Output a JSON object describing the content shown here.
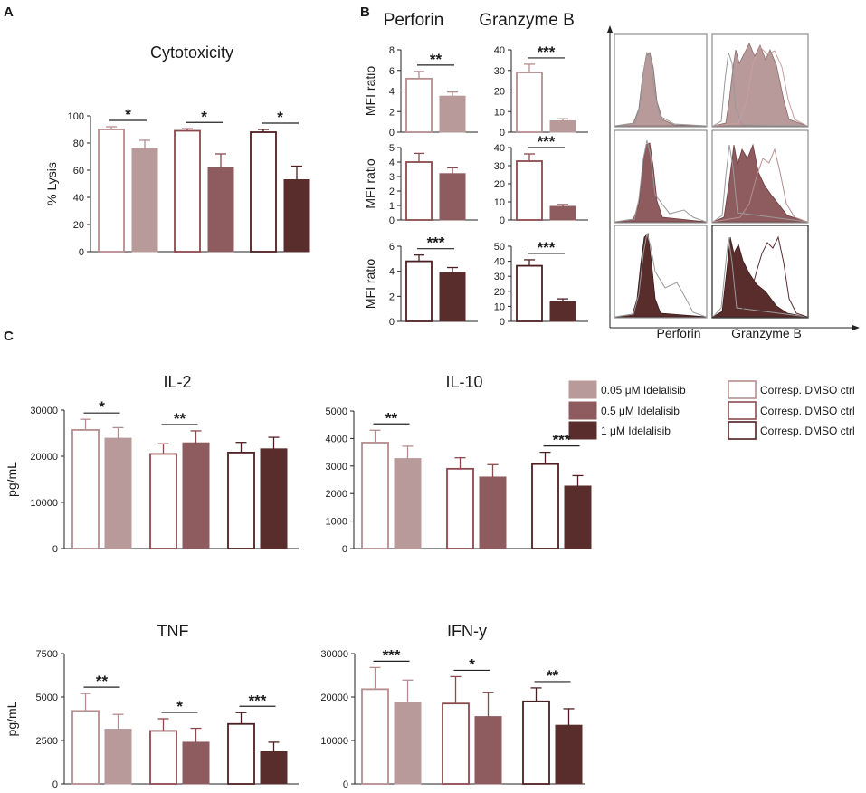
{
  "panels": {
    "A": "A",
    "B": "B",
    "C": "C"
  },
  "colors": {
    "light": "#b89a9a",
    "medium": "#8e5c5e",
    "dark": "#5a2d2d",
    "ctrl_light": "#b58d8f",
    "ctrl_medium": "#8a4a4e",
    "ctrl_dark": "#4e1f22",
    "err": "#555555"
  },
  "legend": {
    "idel": [
      "0.05 μM Idelalisib",
      "0.5 μM Idelalisib",
      "1 μM Idelalisib"
    ],
    "ctrl": [
      "Corresp. DMSO ctrl",
      "Corresp. DMSO ctrl",
      "Corresp. DMSO ctrl"
    ]
  },
  "b_titles": {
    "perforin": "Perforin",
    "granzyme": "Granzyme B"
  },
  "histo": {
    "xlabel_left": "Perforin",
    "xlabel_right": "Granzyme B"
  },
  "chart_data": [
    {
      "id": "A",
      "type": "bar",
      "title": "Cytotoxicity",
      "xlabel": "",
      "ylabel": "% Lysis",
      "ylim": [
        0,
        100
      ],
      "yticks": [
        0,
        20,
        40,
        60,
        80,
        100
      ],
      "ytick_labels": [
        "0",
        "20",
        "40",
        "60",
        "80",
        "100"
      ],
      "groups": [
        {
          "ctrl": 90,
          "ctrl_err": 2,
          "treat": 76,
          "treat_err": 6,
          "shade": "light",
          "sig": "*"
        },
        {
          "ctrl": 89,
          "ctrl_err": 1.5,
          "treat": 62,
          "treat_err": 10,
          "shade": "medium",
          "sig": "*"
        },
        {
          "ctrl": 88,
          "ctrl_err": 2,
          "treat": 53,
          "treat_err": 10,
          "shade": "dark",
          "sig": "*"
        }
      ]
    },
    {
      "id": "B-perf-1",
      "type": "bar",
      "title": "",
      "ylabel": "MFI ratio",
      "ylim": [
        0,
        8
      ],
      "yticks": [
        0,
        2,
        4,
        6,
        8
      ],
      "ytick_labels": [
        "0",
        "2",
        "4",
        "6",
        "8"
      ],
      "groups": [
        {
          "ctrl": 5.2,
          "ctrl_err": 0.7,
          "treat": 3.5,
          "treat_err": 0.4,
          "shade": "light",
          "sig": "**"
        }
      ]
    },
    {
      "id": "B-gzm-1",
      "type": "bar",
      "title": "",
      "ylabel": "",
      "ylim": [
        0,
        40
      ],
      "yticks": [
        0,
        10,
        20,
        30,
        40
      ],
      "ytick_labels": [
        "0",
        "10",
        "20",
        "30",
        "40"
      ],
      "groups": [
        {
          "ctrl": 29,
          "ctrl_err": 4,
          "treat": 5.5,
          "treat_err": 1,
          "shade": "light",
          "sig": "***"
        }
      ]
    },
    {
      "id": "B-perf-2",
      "type": "bar",
      "title": "",
      "ylabel": "MFI ratio",
      "ylim": [
        0,
        5
      ],
      "yticks": [
        0,
        1,
        2,
        3,
        4,
        5
      ],
      "ytick_labels": [
        "0",
        "1",
        "2",
        "3",
        "4",
        "5"
      ],
      "groups": [
        {
          "ctrl": 4.0,
          "ctrl_err": 0.6,
          "treat": 3.2,
          "treat_err": 0.4,
          "shade": "medium",
          "sig": ""
        }
      ]
    },
    {
      "id": "B-gzm-2",
      "type": "bar",
      "title": "",
      "ylabel": "",
      "ylim": [
        0,
        40
      ],
      "yticks": [
        0,
        10,
        20,
        30,
        40
      ],
      "ytick_labels": [
        "0",
        "10",
        "20",
        "30",
        "40"
      ],
      "groups": [
        {
          "ctrl": 32.5,
          "ctrl_err": 4,
          "treat": 7.5,
          "treat_err": 1,
          "shade": "medium",
          "sig": "***"
        }
      ]
    },
    {
      "id": "B-perf-3",
      "type": "bar",
      "title": "",
      "ylabel": "MFI ratio",
      "ylim": [
        0,
        6
      ],
      "yticks": [
        0,
        2,
        4,
        6
      ],
      "ytick_labels": [
        "0",
        "2",
        "4",
        "6"
      ],
      "groups": [
        {
          "ctrl": 4.8,
          "ctrl_err": 0.5,
          "treat": 3.9,
          "treat_err": 0.4,
          "shade": "dark",
          "sig": "***"
        }
      ]
    },
    {
      "id": "B-gzm-3",
      "type": "bar",
      "title": "",
      "ylabel": "",
      "ylim": [
        0,
        50
      ],
      "yticks": [
        0,
        10,
        20,
        30,
        40,
        50
      ],
      "ytick_labels": [
        "0",
        "10",
        "20",
        "30",
        "40",
        "50"
      ],
      "groups": [
        {
          "ctrl": 37,
          "ctrl_err": 4,
          "treat": 13,
          "treat_err": 2,
          "shade": "dark",
          "sig": "***"
        }
      ]
    },
    {
      "id": "C-IL2",
      "type": "bar",
      "title": "IL-2",
      "ylabel": "pg/mL",
      "ylim": [
        0,
        30000
      ],
      "yticks": [
        0,
        10000,
        20000,
        30000
      ],
      "ytick_labels": [
        "0",
        "10000",
        "20000",
        "30000"
      ],
      "groups": [
        {
          "ctrl": 25700,
          "ctrl_err": 2300,
          "treat": 23900,
          "treat_err": 2300,
          "shade": "light",
          "sig": "*"
        },
        {
          "ctrl": 20500,
          "ctrl_err": 2200,
          "treat": 22900,
          "treat_err": 2600,
          "shade": "medium",
          "sig": "**"
        },
        {
          "ctrl": 20800,
          "ctrl_err": 2200,
          "treat": 21600,
          "treat_err": 2500,
          "shade": "dark",
          "sig": ""
        }
      ]
    },
    {
      "id": "C-IL10",
      "type": "bar",
      "title": "IL-10",
      "ylabel": "",
      "ylim": [
        0,
        5000
      ],
      "yticks": [
        0,
        1000,
        2000,
        3000,
        4000,
        5000
      ],
      "ytick_labels": [
        "0",
        "1000",
        "2000",
        "3000",
        "4000",
        "5000"
      ],
      "groups": [
        {
          "ctrl": 3850,
          "ctrl_err": 450,
          "treat": 3270,
          "treat_err": 450,
          "shade": "light",
          "sig": "**"
        },
        {
          "ctrl": 2900,
          "ctrl_err": 400,
          "treat": 2600,
          "treat_err": 450,
          "shade": "medium",
          "sig": ""
        },
        {
          "ctrl": 3070,
          "ctrl_err": 430,
          "treat": 2270,
          "treat_err": 380,
          "shade": "dark",
          "sig": "***"
        }
      ]
    },
    {
      "id": "C-TNF",
      "type": "bar",
      "title": "TNF",
      "ylabel": "pg/mL",
      "ylim": [
        0,
        7500
      ],
      "yticks": [
        0,
        2500,
        5000,
        7500
      ],
      "ytick_labels": [
        "0",
        "2500",
        "5000",
        "7500"
      ],
      "groups": [
        {
          "ctrl": 4200,
          "ctrl_err": 1000,
          "treat": 3150,
          "treat_err": 850,
          "shade": "light",
          "sig": "**"
        },
        {
          "ctrl": 3050,
          "ctrl_err": 700,
          "treat": 2400,
          "treat_err": 800,
          "shade": "medium",
          "sig": "*"
        },
        {
          "ctrl": 3450,
          "ctrl_err": 650,
          "treat": 1850,
          "treat_err": 550,
          "shade": "dark",
          "sig": "***"
        }
      ]
    },
    {
      "id": "C-IFNy",
      "type": "bar",
      "title": "IFN-y",
      "ylabel": "",
      "ylim": [
        0,
        30000
      ],
      "yticks": [
        0,
        10000,
        20000,
        30000
      ],
      "ytick_labels": [
        "0",
        "10000",
        "20000",
        "30000"
      ],
      "groups": [
        {
          "ctrl": 21800,
          "ctrl_err": 5000,
          "treat": 18700,
          "treat_err": 5200,
          "shade": "light",
          "sig": "***"
        },
        {
          "ctrl": 18500,
          "ctrl_err": 6200,
          "treat": 15500,
          "treat_err": 5600,
          "shade": "medium",
          "sig": "*"
        },
        {
          "ctrl": 19000,
          "ctrl_err": 3100,
          "treat": 13500,
          "treat_err": 3800,
          "shade": "dark",
          "sig": "**"
        }
      ]
    }
  ]
}
